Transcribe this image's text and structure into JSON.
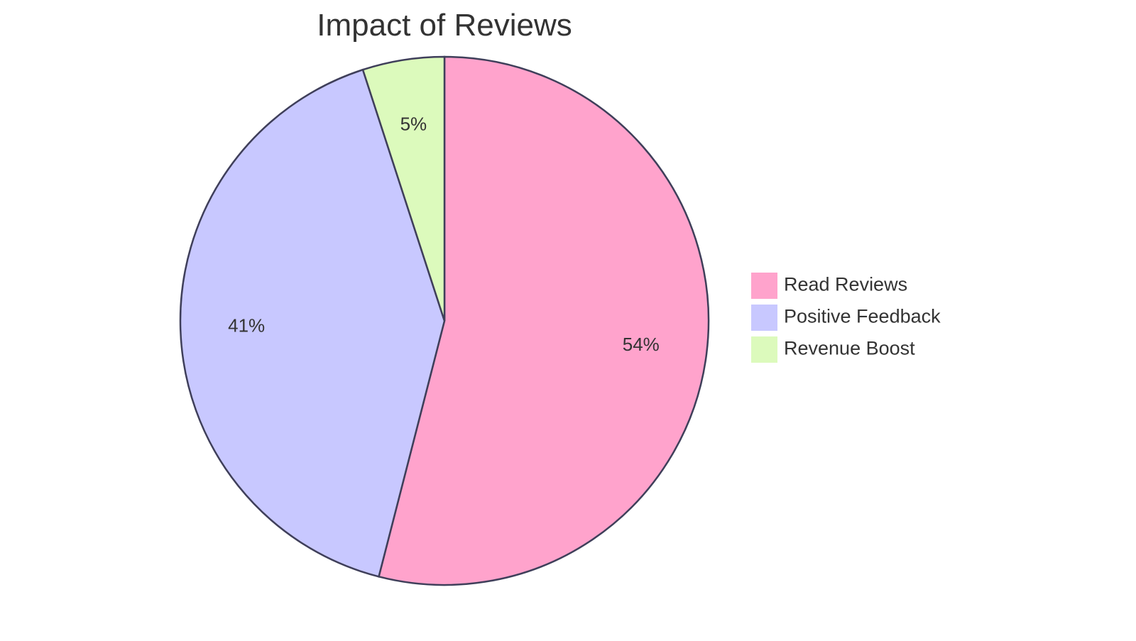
{
  "chart_data": {
    "type": "pie",
    "title": "Impact of Reviews",
    "legend_position": "right",
    "slices": [
      {
        "name": "Read Reviews",
        "value": 54,
        "label": "54%",
        "color": "#ffa3cc"
      },
      {
        "name": "Positive Feedback",
        "value": 41,
        "label": "41%",
        "color": "#c8c8ff"
      },
      {
        "name": "Revenue Boost",
        "value": 5,
        "label": "5%",
        "color": "#dcfabc"
      }
    ]
  }
}
